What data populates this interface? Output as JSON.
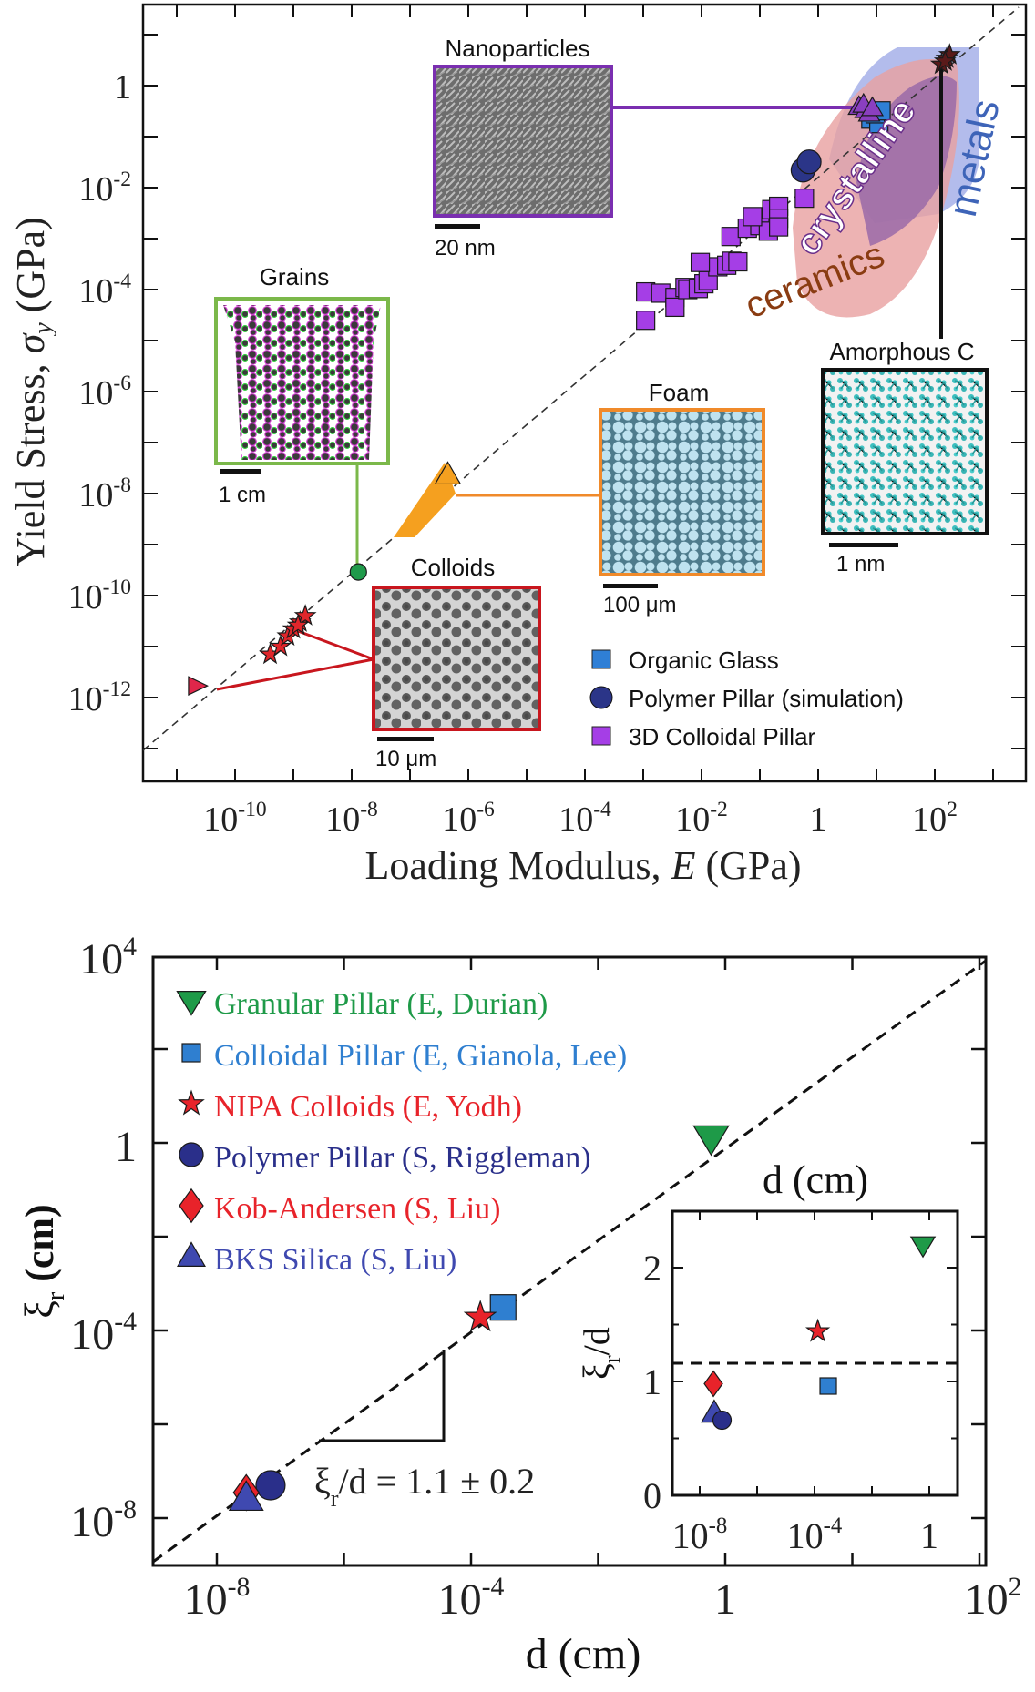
{
  "chart_data": [
    {
      "type": "scatter",
      "title": "",
      "xlabel": "Loading Modulus, E (GPa)",
      "ylabel": "Yield Stress, σy (GPa)",
      "xscale": "log",
      "yscale": "log",
      "xlim": [
        2.6e-12,
        3600.0
      ],
      "ylim": [
        2.3e-14,
        39
      ],
      "x_tick_labels": [
        {
          "value": 1e-10,
          "base": "10",
          "exp": "-10"
        },
        {
          "value": 1e-08,
          "base": "10",
          "exp": "-8"
        },
        {
          "value": 1e-06,
          "base": "10",
          "exp": "-6"
        },
        {
          "value": 0.0001,
          "base": "10",
          "exp": "-4"
        },
        {
          "value": 0.01,
          "base": "10",
          "exp": "-2"
        },
        {
          "value": 1,
          "base": "1",
          "exp": ""
        },
        {
          "value": 100,
          "base": "10",
          "exp": "2"
        }
      ],
      "y_tick_labels": [
        {
          "value": 1,
          "base": "1",
          "exp": ""
        },
        {
          "value": 0.01,
          "base": "10",
          "exp": "-2"
        },
        {
          "value": 0.0001,
          "base": "10",
          "exp": "-4"
        },
        {
          "value": 1e-06,
          "base": "10",
          "exp": "-6"
        },
        {
          "value": 1e-08,
          "base": "10",
          "exp": "-8"
        },
        {
          "value": 1e-10,
          "base": "10",
          "exp": "-10"
        },
        {
          "value": 1e-12,
          "base": "10",
          "exp": "-12"
        }
      ],
      "reference_line": {
        "style": "dashed",
        "slope_loglog": 1,
        "description": "σy ∝ E"
      },
      "legend": {
        "placement": "bottom-right",
        "entries": [
          {
            "label": "Organic Glass",
            "marker": "square",
            "color": "#2f7fd6"
          },
          {
            "label": "Polymer Pillar (simulation)",
            "marker": "circle",
            "color": "#2b3588"
          },
          {
            "label": "3D Colloidal Pillar",
            "marker": "square",
            "color": "#a53ee6"
          }
        ]
      },
      "series": [
        {
          "name": "Organic Glass",
          "marker": "square",
          "color": "#2f7fd6",
          "points": [
            [
              8.0,
              0.22
            ],
            [
              11.0,
              0.18
            ],
            [
              9.5,
              0.28
            ],
            [
              12.0,
              0.32
            ]
          ]
        },
        {
          "name": "Polymer Pillar (simulation)",
          "marker": "circle",
          "color": "#2b3588",
          "points": [
            [
              0.55,
              0.022
            ],
            [
              0.7,
              0.032
            ]
          ]
        },
        {
          "name": "3D Colloidal Pillar",
          "marker": "square",
          "color": "#a53ee6",
          "points": [
            [
              0.0011,
              9e-05
            ],
            [
              0.002,
              8.5e-05
            ],
            [
              0.0035,
              7e-05
            ],
            [
              0.0035,
              4.5e-05
            ],
            [
              0.0052,
              0.00011
            ],
            [
              0.0058,
              0.0001
            ],
            [
              0.0088,
              0.000105
            ],
            [
              0.011,
              0.00013
            ],
            [
              0.013,
              0.00015
            ],
            [
              0.019,
              0.00028
            ],
            [
              0.027,
              0.0003
            ],
            [
              0.033,
              0.00036
            ],
            [
              0.042,
              0.00035
            ],
            [
              0.0095,
              0.00034
            ],
            [
              0.032,
              0.0011
            ],
            [
              0.061,
              0.0016
            ],
            [
              0.1,
              0.0018
            ],
            [
              0.14,
              0.0014
            ],
            [
              0.16,
              0.0037
            ],
            [
              0.21,
              0.0043
            ],
            [
              0.21,
              0.0025
            ],
            [
              0.21,
              0.0017
            ],
            [
              0.075,
              0.0027
            ],
            [
              0.58,
              0.0062
            ],
            [
              0.0011,
              2.5e-05
            ]
          ]
        },
        {
          "name": "Nanoparticles",
          "marker": "triangle",
          "color": "#8a3fc0",
          "points": [
            [
              5.0,
              0.38
            ],
            [
              6.5,
              0.33
            ],
            [
              7.5,
              0.28
            ],
            [
              6.0,
              0.42
            ],
            [
              8.5,
              0.36
            ]
          ]
        },
        {
          "name": "Amorphous C",
          "marker": "star",
          "color": "#5a1a1a",
          "points": [
            [
              130,
              2.6
            ],
            [
              160,
              3.4
            ],
            [
              180,
              4.0
            ],
            [
              150,
              3.0
            ]
          ]
        },
        {
          "name": "Grains",
          "marker": "circle",
          "color": "#1f9a4a",
          "points": [
            [
              1.3e-08,
              2.9e-10
            ]
          ]
        },
        {
          "name": "Colloids",
          "marker": "star",
          "color": "#e0262b",
          "points": [
            [
              4e-10,
              7e-12
            ],
            [
              6e-10,
              1e-11
            ],
            [
              8e-10,
              1.6e-11
            ],
            [
              1e-09,
              2.2e-11
            ],
            [
              1.3e-09,
              3e-11
            ],
            [
              1.6e-09,
              4e-11
            ],
            [
              1.2e-09,
              2.6e-11
            ]
          ]
        },
        {
          "name": "Colloids (triangle)",
          "marker": "triangle-right",
          "color": "#e0264a",
          "points": [
            [
              2.2e-11,
              1.7e-12
            ]
          ]
        },
        {
          "name": "Foam",
          "marker": "triangle",
          "color": "#f5a01f",
          "points": [
            [
              2.5e-07,
              1.4e-08
            ]
          ]
        }
      ],
      "regions": [
        {
          "label": "ceramics",
          "color": "#e8a0a0",
          "text_color": "#8a3c12"
        },
        {
          "label": "crystalline",
          "color": "#9a6aa8",
          "text_color": "#ffffff"
        },
        {
          "label": "metals",
          "color": "#9aa6e6",
          "text_color": "#3e64b8"
        }
      ],
      "inset_images": [
        {
          "title": "Nanoparticles",
          "scale_bar": "20 nm",
          "frame_color": "#7a2fb0"
        },
        {
          "title": "Grains",
          "scale_bar": "1 cm",
          "frame_color": "#7bb84a"
        },
        {
          "title": "Colloids",
          "scale_bar": "10 μm",
          "frame_color": "#c8161e"
        },
        {
          "title": "Foam",
          "scale_bar": "100 μm",
          "frame_color": "#f08a2a"
        },
        {
          "title": "Amorphous C",
          "scale_bar": "1 nm",
          "frame_color": "#111111"
        }
      ]
    },
    {
      "type": "scatter",
      "title": "",
      "xlabel": "d (cm)",
      "ylabel": "ξr (cm)",
      "xscale": "log",
      "yscale": "log",
      "xlim": [
        1e-09,
        100000.0
      ],
      "ylim": [
        1e-09,
        10000.0
      ],
      "x_tick_labels": [
        {
          "value": 1e-08,
          "base": "10",
          "exp": "-8"
        },
        {
          "value": 0.0001,
          "base": "10",
          "exp": "-4"
        },
        {
          "value": 1,
          "base": "1",
          "exp": ""
        },
        {
          "value": "right-edge",
          "base": "10",
          "exp": "2"
        }
      ],
      "y_tick_labels": [
        {
          "value": 10000.0,
          "base": "10",
          "exp": "4"
        },
        {
          "value": 1,
          "base": "1",
          "exp": ""
        },
        {
          "value": 0.0001,
          "base": "10",
          "exp": "-4"
        },
        {
          "value": 1e-08,
          "base": "10",
          "exp": "-8"
        }
      ],
      "reference_line": {
        "style": "dashed",
        "slope_loglog": 1
      },
      "annotation": {
        "prefix": "ξ",
        "sub": "r",
        "text": "/d = 1.1 ± 0.2"
      },
      "legend": {
        "placement": "top-left",
        "entries": [
          {
            "label": "Granular Pillar (E, Durian)",
            "marker": "triangle-down",
            "color": "#1e9a48"
          },
          {
            "label": "Colloidal Pillar (E, Gianola, Lee)",
            "marker": "square",
            "color": "#2f7fd0"
          },
          {
            "label": "NIPA Colloids (E, Yodh)",
            "marker": "star",
            "color": "#e8232a"
          },
          {
            "label": "Polymer Pillar (S, Riggleman)",
            "marker": "circle",
            "color": "#2a2f8a"
          },
          {
            "label": "Kob-Andersen (S, Liu)",
            "marker": "diamond",
            "color": "#e8232a"
          },
          {
            "label": "BKS Silica (S, Liu)",
            "marker": "triangle-up",
            "color": "#3f49b0"
          }
        ]
      },
      "series": [
        {
          "name": "Granular Pillar (E, Durian)",
          "marker": "triangle-down",
          "color": "#1e9a48",
          "points": [
            [
              0.6,
              1.3
            ]
          ]
        },
        {
          "name": "Colloidal Pillar (E, Gianola, Lee)",
          "marker": "square",
          "color": "#2f7fd0",
          "points": [
            [
              0.00032,
              0.00031
            ]
          ]
        },
        {
          "name": "NIPA Colloids (E, Yodh)",
          "marker": "star",
          "color": "#e8232a",
          "points": [
            [
              0.00014,
              0.00019
            ]
          ]
        },
        {
          "name": "Polymer Pillar (S, Riggleman)",
          "marker": "circle",
          "color": "#2a2f8a",
          "points": [
            [
              7e-08,
              5e-08
            ]
          ]
        },
        {
          "name": "Kob-Andersen (S, Liu)",
          "marker": "diamond",
          "color": "#e8232a",
          "points": [
            [
              2.9e-08,
              3.5e-08
            ]
          ]
        },
        {
          "name": "BKS Silica (S, Liu)",
          "marker": "triangle-up",
          "color": "#3f49b0",
          "points": [
            [
              2.9e-08,
              2.6e-08
            ]
          ]
        }
      ],
      "inset": {
        "type": "scatter",
        "xlabel": "d (cm)",
        "ylabel": "ξr/d",
        "xscale": "log",
        "yscale": "linear",
        "ylim": [
          0,
          2.5
        ],
        "x_tick_labels": [
          {
            "value": 1e-08,
            "base": "10",
            "exp": "-8"
          },
          {
            "value": 0.0001,
            "base": "10",
            "exp": "-4"
          },
          {
            "value": 1,
            "base": "1",
            "exp": ""
          }
        ],
        "y_tick_labels": [
          "0",
          "1",
          "2"
        ],
        "reference_line": {
          "style": "dashed",
          "y": 1.16
        },
        "series": [
          {
            "name": "Granular Pillar (E, Durian)",
            "marker": "triangle-down",
            "color": "#1e9a48",
            "points": [
              [
                0.6,
                2.2
              ]
            ]
          },
          {
            "name": "NIPA Colloids (E, Yodh)",
            "marker": "star",
            "color": "#e8232a",
            "points": [
              [
                0.00013,
                1.44
              ]
            ]
          },
          {
            "name": "Colloidal Pillar (E, Gianola, Lee)",
            "marker": "square",
            "color": "#2f7fd0",
            "points": [
              [
                0.0003,
                0.96
              ]
            ]
          },
          {
            "name": "Kob-Andersen (S, Liu)",
            "marker": "diamond",
            "color": "#e8232a",
            "points": [
              [
                3e-08,
                0.98
              ]
            ]
          },
          {
            "name": "BKS Silica (S, Liu)",
            "marker": "triangle-up",
            "color": "#3f49b0",
            "points": [
              [
                3.2e-08,
                0.72
              ]
            ]
          },
          {
            "name": "Polymer Pillar (S, Riggleman)",
            "marker": "circle",
            "color": "#2a2f8a",
            "points": [
              [
                6e-08,
                0.66
              ]
            ]
          }
        ]
      }
    }
  ]
}
